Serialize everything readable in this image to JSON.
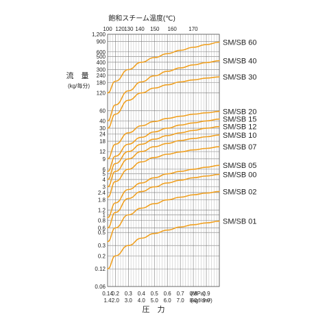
{
  "chart_data": {
    "type": "line",
    "title": "飽和スチーム温度(℃)",
    "xlabel": "圧　力",
    "ylabel": "流　量",
    "ylabel_unit": "(kg/毎分)",
    "x_unit_mpa": "(MPa)",
    "x_unit_kgf": "(kgf/cm²)",
    "y_scale": "log",
    "ylim": [
      0.06,
      1200
    ],
    "xlim": [
      0.14,
      1.0
    ],
    "grid": true,
    "legend": "right",
    "line_color": "#F0A020",
    "y_ticks": [
      0.06,
      0.12,
      0.2,
      0.3,
      0.5,
      0.6,
      0.8,
      1,
      1.2,
      1.8,
      2.4,
      3,
      4,
      5,
      6,
      9,
      12,
      18,
      24,
      30,
      40,
      60,
      120,
      180,
      240,
      300,
      400,
      500,
      600,
      900,
      1200
    ],
    "y_tick_labels": [
      "0.06",
      "0.12",
      "0.2",
      "0.3",
      "0.5",
      "0.6",
      "0.8",
      "1",
      "1.2",
      "1.8",
      "2.4",
      "3",
      "4",
      "5",
      "6",
      "9",
      "12",
      "18",
      "24",
      "30",
      "40",
      "60",
      "120",
      "180",
      "240",
      "300",
      "400",
      "500",
      "600",
      "900",
      "1,200"
    ],
    "x_ticks_mpa": [
      0.14,
      0.2,
      0.3,
      0.4,
      0.5,
      0.6,
      0.7,
      0.8,
      0.9
    ],
    "x_tick_labels_mpa": [
      "0.14",
      "0.2",
      "0.3",
      "0.4",
      "0.5",
      "0.6",
      "0.7",
      "0.8",
      "0.9"
    ],
    "x_tick_labels_kgf": [
      "1.4",
      "2.0",
      "3.0",
      "4.0",
      "5.0",
      "6.0",
      "7.0",
      "8.0",
      "9.0"
    ],
    "top_ticks_pressure": [
      0.1,
      0.2,
      0.27,
      0.36,
      0.48,
      0.62,
      0.79
    ],
    "top_tick_labels": [
      "100",
      "120",
      "130",
      "140",
      "150",
      "160",
      "170"
    ],
    "x": [
      0.14,
      0.2,
      0.3,
      0.4,
      0.5,
      0.6,
      0.7,
      0.8,
      0.9,
      1.0
    ],
    "series": [
      {
        "name": "SM/SB 60",
        "values": [
          120,
          190,
          300,
          400,
          480,
          560,
          640,
          720,
          800,
          880
        ]
      },
      {
        "name": "SM/SB 40",
        "values": [
          40,
          75,
          130,
          185,
          235,
          280,
          320,
          360,
          395,
          425
        ]
      },
      {
        "name": "SM/SB 30",
        "values": [
          30,
          52,
          90,
          120,
          145,
          165,
          185,
          200,
          215,
          225
        ]
      },
      {
        "name": "SM/SB 20",
        "values": [
          9,
          16,
          25,
          33,
          39,
          44,
          48,
          52,
          55,
          58
        ]
      },
      {
        "name": "SM/SB 15",
        "values": [
          5.5,
          10,
          16,
          21,
          26,
          30,
          34,
          37,
          40,
          43
        ]
      },
      {
        "name": "SM/SB 12",
        "values": [
          4,
          7.5,
          12,
          16,
          19.5,
          22.5,
          25,
          27.5,
          30,
          32
        ]
      },
      {
        "name": "SM/SB 10",
        "values": [
          3,
          5.5,
          9,
          12,
          14.5,
          16.5,
          18.5,
          20,
          21.5,
          23
        ]
      },
      {
        "name": "SM/SB 07",
        "values": [
          2,
          3.7,
          6,
          8,
          9.5,
          10.8,
          11.8,
          12.8,
          13.6,
          14.5
        ]
      },
      {
        "name": "SM/SB 05",
        "values": [
          0.9,
          1.6,
          2.7,
          3.5,
          4.3,
          5,
          5.5,
          6,
          6.5,
          7
        ]
      },
      {
        "name": "SM/SB 00",
        "values": [
          0.6,
          1.1,
          1.9,
          2.5,
          3,
          3.5,
          3.9,
          4.3,
          4.6,
          4.9
        ]
      },
      {
        "name": "SM/SB 02",
        "values": [
          0.35,
          0.6,
          1,
          1.3,
          1.55,
          1.8,
          2,
          2.2,
          2.35,
          2.5
        ]
      },
      {
        "name": "SM/SB 01",
        "values": [
          0.12,
          0.2,
          0.3,
          0.4,
          0.48,
          0.55,
          0.62,
          0.68,
          0.73,
          0.78
        ]
      }
    ]
  }
}
